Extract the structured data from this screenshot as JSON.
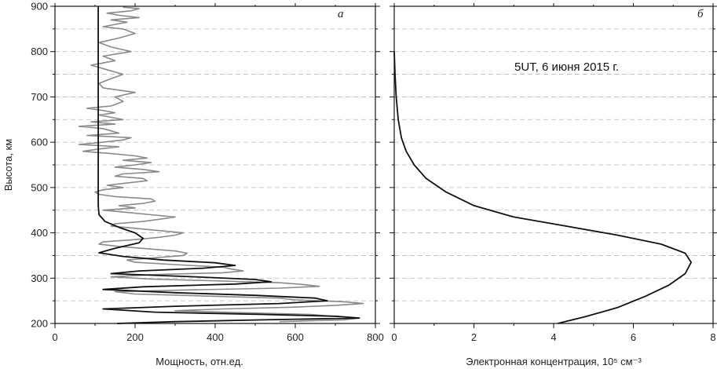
{
  "chart_data": [
    {
      "type": "line",
      "panel_label": "а",
      "xlabel": "Мощность, отн.ед.",
      "ylabel": "Высота, км",
      "xlim": [
        0,
        800
      ],
      "ylim": [
        200,
        900
      ],
      "xticks": [
        0,
        200,
        400,
        600,
        800
      ],
      "yticks": [
        200,
        300,
        400,
        500,
        600,
        700,
        800,
        900
      ],
      "grid": "horizontal dashed every 50 km",
      "series": [
        {
          "style": "black smooth model profile",
          "color": "#111111",
          "x": [
            155,
            300,
            520,
            760,
            700,
            520,
            250,
            120,
            300,
            560,
            680,
            650,
            500,
            300,
            120,
            220,
            450,
            540,
            500,
            350,
            140,
            210,
            370,
            450,
            400,
            270,
            170,
            110,
            150,
            210,
            220,
            200,
            160,
            125,
            110,
            108,
            108,
            108,
            108,
            108,
            108,
            108,
            108,
            108,
            108,
            108,
            108,
            108
          ],
          "y": [
            200,
            204,
            208,
            212,
            216,
            220,
            225,
            232,
            238,
            244,
            250,
            256,
            262,
            268,
            275,
            281,
            287,
            292,
            297,
            303,
            310,
            316,
            322,
            328,
            334,
            340,
            348,
            356,
            366,
            378,
            388,
            400,
            412,
            425,
            440,
            460,
            480,
            500,
            550,
            600,
            650,
            700,
            750,
            800,
            850,
            880,
            895,
            900
          ]
        },
        {
          "style": "grey noisy measured profile",
          "color": "#8a8a8a",
          "x": [
            560,
            720,
            760,
            690,
            640,
            450,
            300,
            420,
            600,
            700,
            770,
            720,
            600,
            560,
            400,
            200,
            150,
            330,
            560,
            660,
            620,
            560,
            400,
            240,
            140,
            250,
            420,
            470,
            440,
            420,
            300,
            200,
            180,
            250,
            320,
            330,
            300,
            230,
            160,
            110,
            120,
            200,
            260,
            300,
            320,
            260,
            200,
            140,
            150,
            220,
            260,
            300,
            240,
            180,
            120,
            200,
            160,
            220,
            250,
            240,
            150,
            110,
            100,
            120,
            170,
            130,
            180,
            230,
            220,
            150,
            170,
            260,
            220,
            150,
            200,
            240,
            170,
            230,
            200,
            140,
            70,
            110,
            160,
            60,
            120,
            170,
            190,
            80,
            160,
            140,
            120,
            60,
            150,
            90,
            170,
            140,
            110,
            150,
            120,
            80,
            140,
            170,
            150,
            200,
            120,
            110,
            140,
            170,
            130,
            90,
            150,
            120,
            190,
            140,
            110,
            160,
            200,
            170,
            120,
            150,
            180,
            140,
            210,
            160,
            130,
            190,
            210,
            170
          ],
          "y": [
            204,
            208,
            212,
            216,
            220,
            224,
            228,
            232,
            236,
            240,
            244,
            248,
            252,
            256,
            260,
            265,
            270,
            274,
            278,
            282,
            286,
            290,
            294,
            298,
            303,
            308,
            312,
            316,
            320,
            324,
            330,
            335,
            340,
            345,
            350,
            355,
            360,
            365,
            370,
            375,
            380,
            385,
            390,
            395,
            400,
            405,
            410,
            415,
            420,
            425,
            430,
            435,
            440,
            445,
            450,
            455,
            460,
            465,
            470,
            475,
            480,
            485,
            490,
            495,
            500,
            505,
            510,
            515,
            520,
            525,
            530,
            535,
            540,
            545,
            550,
            555,
            560,
            565,
            570,
            575,
            580,
            585,
            590,
            595,
            600,
            605,
            610,
            615,
            620,
            625,
            630,
            635,
            640,
            645,
            650,
            655,
            660,
            665,
            670,
            675,
            680,
            690,
            700,
            710,
            720,
            730,
            740,
            750,
            760,
            770,
            780,
            790,
            800,
            810,
            820,
            830,
            840,
            850,
            855,
            860,
            865,
            870,
            875,
            880,
            885,
            890,
            895,
            898
          ]
        }
      ]
    },
    {
      "type": "line",
      "panel_label": "б",
      "xlabel": "Электронная концентрация, 10⁵ см⁻³",
      "ylabel": "",
      "xlim": [
        0,
        8
      ],
      "ylim": [
        200,
        900
      ],
      "xticks": [
        0,
        2,
        4,
        6,
        8
      ],
      "annotation": "5UT, 6 июня 2015 г.",
      "grid": "horizontal dashed every 50 km",
      "series": [
        {
          "style": "black electron density profile",
          "color": "#111111",
          "x": [
            4.1,
            4.8,
            5.6,
            6.3,
            6.9,
            7.3,
            7.45,
            7.3,
            6.7,
            5.6,
            4.3,
            3.0,
            2.0,
            1.3,
            0.8,
            0.5,
            0.3,
            0.18,
            0.1,
            0.05,
            0.02,
            0.0
          ],
          "y": [
            200,
            215,
            235,
            260,
            285,
            310,
            335,
            355,
            375,
            395,
            415,
            435,
            460,
            490,
            520,
            550,
            580,
            610,
            650,
            700,
            750,
            800
          ]
        }
      ]
    }
  ]
}
